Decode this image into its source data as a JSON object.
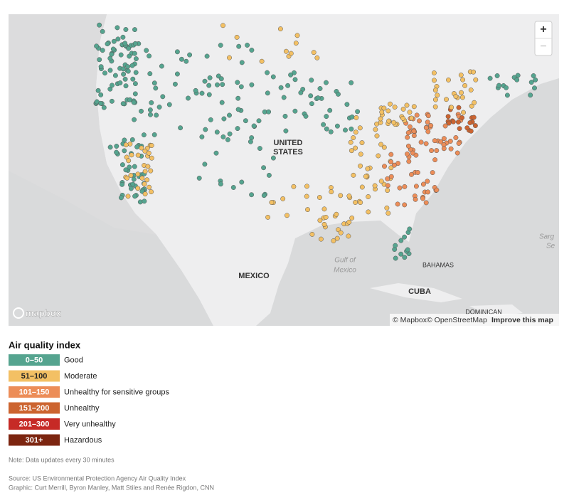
{
  "map": {
    "labels": {
      "us_line1": "UNITED",
      "us_line2": "STATES",
      "mexico": "MEXICO",
      "gulf_line1": "Gulf of",
      "gulf_line2": "Mexico",
      "bahamas": "BAHAMAS",
      "cuba": "CUBA",
      "dominican": "DOMINICAN",
      "sargasso_line1": "Sarg",
      "sargasso_line2": "Se"
    },
    "zoom_in": "+",
    "zoom_out": "−",
    "logo": "mapbox",
    "attribution": [
      "© Mapbox",
      "© OpenStreetMap",
      "Improve this map"
    ]
  },
  "legend": {
    "title": "Air quality index",
    "items": [
      {
        "range": "0–50",
        "label": "Good",
        "color": "#55a48f"
      },
      {
        "range": "51–100",
        "label": "Moderate",
        "color": "#f3c064"
      },
      {
        "range": "101–150",
        "label": "Unhealthy for sensitive groups",
        "color": "#ec8d58"
      },
      {
        "range": "151–200",
        "label": "Unhealthy",
        "color": "#cc6430"
      },
      {
        "range": "201–300",
        "label": "Very unhealthy",
        "color": "#c62a26"
      },
      {
        "range": "301+",
        "label": "Hazardous",
        "color": "#7c2510"
      }
    ]
  },
  "notes": {
    "note": "Note: Data updates every 30 minutes",
    "source": "Source: US Environmental Protection Agency Air Quality Index",
    "graphic": "Graphic: Curt Merrill, Byron Manley, Matt Stiles and Renée Rigdon, CNN"
  }
}
